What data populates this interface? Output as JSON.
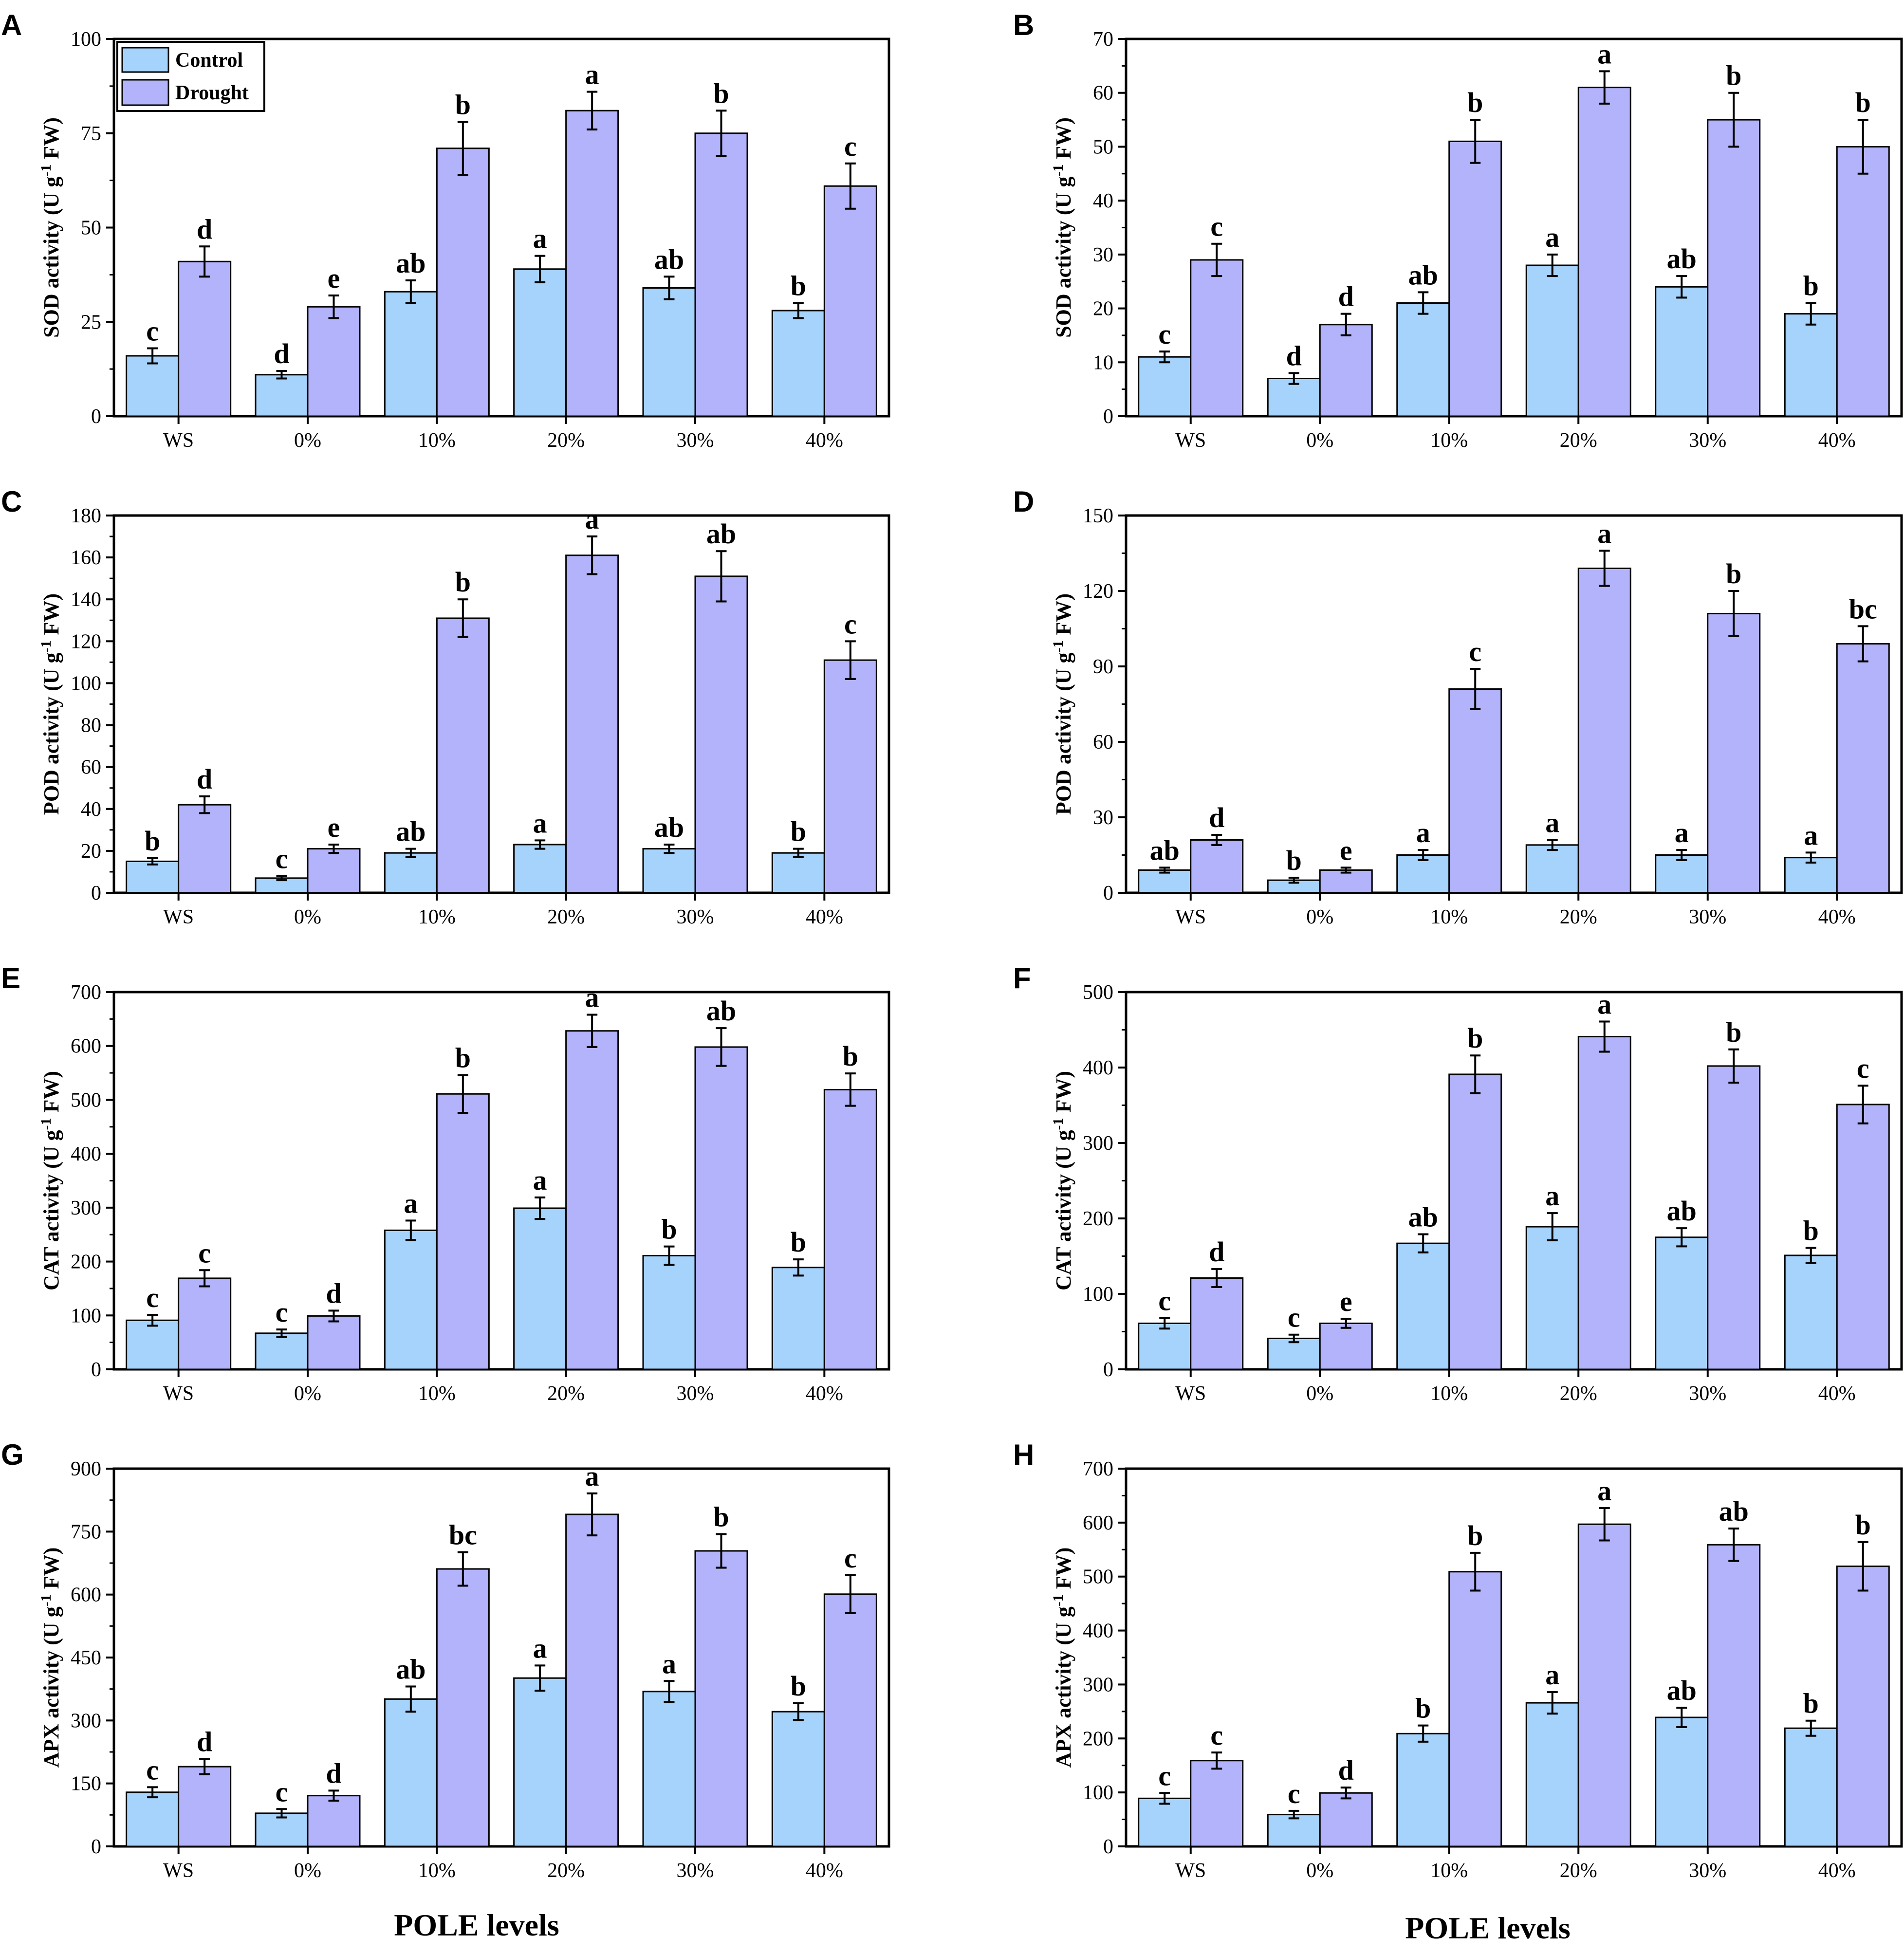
{
  "colors": {
    "control": "#a6d3fb",
    "drought": "#b3b3fb",
    "axis": "#000000",
    "background": "#ffffff"
  },
  "legend": {
    "control": "Control",
    "drought": "Drought",
    "placement": "top-left (panel A)"
  },
  "x_title": "POLE levels",
  "chart_data": [
    {
      "panel": "A",
      "type": "bar",
      "categories": [
        "WS",
        "0%",
        "10%",
        "20%",
        "30%",
        "40%"
      ],
      "ylabel": "SOD activity (U g-1 FW)",
      "ylim": [
        0,
        100
      ],
      "yticks": [
        0,
        25,
        50,
        75,
        100
      ],
      "series": [
        {
          "name": "Control",
          "values": [
            16,
            11,
            33,
            39,
            34,
            28
          ],
          "errors": [
            2,
            1,
            3,
            3.5,
            3,
            2
          ],
          "letters": [
            "c",
            "d",
            "ab",
            "a",
            "ab",
            "b"
          ]
        },
        {
          "name": "Drought",
          "values": [
            41,
            29,
            71,
            81,
            75,
            61
          ],
          "errors": [
            4,
            3,
            7,
            5,
            6,
            6
          ],
          "letters": [
            "d",
            "e",
            "b",
            "a",
            "b",
            "c"
          ]
        }
      ]
    },
    {
      "panel": "B",
      "type": "bar",
      "categories": [
        "WS",
        "0%",
        "10%",
        "20%",
        "30%",
        "40%"
      ],
      "ylabel": "SOD activity (U g-1 FW)",
      "ylim": [
        0,
        70
      ],
      "yticks": [
        0,
        10,
        20,
        30,
        40,
        50,
        60,
        70
      ],
      "series": [
        {
          "name": "Control",
          "values": [
            11,
            7,
            21,
            28,
            24,
            19
          ],
          "errors": [
            1,
            1,
            2,
            2,
            2,
            2
          ],
          "letters": [
            "c",
            "d",
            "ab",
            "a",
            "ab",
            "b"
          ]
        },
        {
          "name": "Drought",
          "values": [
            29,
            17,
            51,
            61,
            55,
            50
          ],
          "errors": [
            3,
            2,
            4,
            3,
            5,
            5
          ],
          "letters": [
            "c",
            "d",
            "b",
            "a",
            "b",
            "b"
          ]
        }
      ]
    },
    {
      "panel": "C",
      "type": "bar",
      "categories": [
        "WS",
        "0%",
        "10%",
        "20%",
        "30%",
        "40%"
      ],
      "ylabel": "POD activity (U g-1 FW)",
      "ylim": [
        0,
        180
      ],
      "yticks": [
        0,
        20,
        40,
        60,
        80,
        100,
        120,
        140,
        160,
        180
      ],
      "series": [
        {
          "name": "Control",
          "values": [
            15,
            7,
            19,
            23,
            21,
            19
          ],
          "errors": [
            1.5,
            1,
            2,
            2,
            2,
            2
          ],
          "letters": [
            "b",
            "c",
            "ab",
            "a",
            "ab",
            "b"
          ]
        },
        {
          "name": "Drought",
          "values": [
            42,
            21,
            131,
            161,
            151,
            111
          ],
          "errors": [
            4,
            2,
            9,
            9,
            12,
            9
          ],
          "letters": [
            "d",
            "e",
            "b",
            "a",
            "ab",
            "c"
          ]
        }
      ]
    },
    {
      "panel": "D",
      "type": "bar",
      "categories": [
        "WS",
        "0%",
        "10%",
        "20%",
        "30%",
        "40%"
      ],
      "ylabel": "POD activity (U g-1 FW)",
      "ylim": [
        0,
        150
      ],
      "yticks": [
        0,
        30,
        60,
        90,
        120,
        150
      ],
      "series": [
        {
          "name": "Control",
          "values": [
            9,
            5,
            15,
            19,
            15,
            14
          ],
          "errors": [
            1,
            1,
            2,
            2,
            2,
            2
          ],
          "letters": [
            "ab",
            "b",
            "a",
            "a",
            "a",
            "a"
          ]
        },
        {
          "name": "Drought",
          "values": [
            21,
            9,
            81,
            129,
            111,
            99
          ],
          "errors": [
            2,
            1,
            8,
            7,
            9,
            7
          ],
          "letters": [
            "d",
            "e",
            "c",
            "a",
            "b",
            "bc"
          ]
        }
      ]
    },
    {
      "panel": "E",
      "type": "bar",
      "categories": [
        "WS",
        "0%",
        "10%",
        "20%",
        "30%",
        "40%"
      ],
      "ylabel": "CAT activity (U g-1 FW)",
      "ylim": [
        0,
        700
      ],
      "yticks": [
        0,
        100,
        200,
        300,
        400,
        500,
        600,
        700
      ],
      "series": [
        {
          "name": "Control",
          "values": [
            91,
            67,
            258,
            299,
            211,
            189
          ],
          "errors": [
            10,
            7,
            18,
            20,
            17,
            15
          ],
          "letters": [
            "c",
            "c",
            "a",
            "a",
            "b",
            "b"
          ]
        },
        {
          "name": "Drought",
          "values": [
            169,
            99,
            511,
            628,
            598,
            519
          ],
          "errors": [
            15,
            10,
            35,
            30,
            35,
            30
          ],
          "letters": [
            "c",
            "d",
            "b",
            "a",
            "ab",
            "b"
          ]
        }
      ]
    },
    {
      "panel": "F",
      "type": "bar",
      "categories": [
        "WS",
        "0%",
        "10%",
        "20%",
        "30%",
        "40%"
      ],
      "ylabel": "CAT activity (U g-1 FW)",
      "ylim": [
        0,
        500
      ],
      "yticks": [
        0,
        100,
        200,
        300,
        400,
        500
      ],
      "series": [
        {
          "name": "Control",
          "values": [
            61,
            41,
            167,
            189,
            175,
            151
          ],
          "errors": [
            7,
            5,
            12,
            18,
            12,
            10
          ],
          "letters": [
            "c",
            "c",
            "ab",
            "a",
            "ab",
            "b"
          ]
        },
        {
          "name": "Drought",
          "values": [
            121,
            61,
            391,
            441,
            402,
            351
          ],
          "errors": [
            12,
            6,
            25,
            20,
            22,
            25
          ],
          "letters": [
            "d",
            "e",
            "b",
            "a",
            "b",
            "c"
          ]
        }
      ]
    },
    {
      "panel": "G",
      "type": "bar",
      "categories": [
        "WS",
        "0%",
        "10%",
        "20%",
        "30%",
        "40%"
      ],
      "ylabel": "APX activity (U g-1 FW)",
      "ylim": [
        0,
        900
      ],
      "yticks": [
        0,
        150,
        300,
        450,
        600,
        750,
        900
      ],
      "series": [
        {
          "name": "Control",
          "values": [
            129,
            79,
            351,
            401,
            369,
            321
          ],
          "errors": [
            12,
            10,
            30,
            30,
            25,
            20
          ],
          "letters": [
            "c",
            "c",
            "ab",
            "a",
            "a",
            "b"
          ]
        },
        {
          "name": "Drought",
          "values": [
            190,
            121,
            661,
            791,
            704,
            601
          ],
          "errors": [
            18,
            12,
            40,
            50,
            40,
            45
          ],
          "letters": [
            "d",
            "d",
            "bc",
            "a",
            "b",
            "c"
          ]
        }
      ]
    },
    {
      "panel": "H",
      "type": "bar",
      "categories": [
        "WS",
        "0%",
        "10%",
        "20%",
        "30%",
        "40%"
      ],
      "ylabel": "APX activity (U g-1 FW)",
      "ylim": [
        0,
        700
      ],
      "yticks": [
        0,
        100,
        200,
        300,
        400,
        500,
        600,
        700
      ],
      "series": [
        {
          "name": "Control",
          "values": [
            89,
            59,
            209,
            266,
            239,
            219
          ],
          "errors": [
            10,
            7,
            15,
            20,
            18,
            14
          ],
          "letters": [
            "c",
            "c",
            "b",
            "a",
            "ab",
            "b"
          ]
        },
        {
          "name": "Drought",
          "values": [
            159,
            99,
            509,
            597,
            559,
            519
          ],
          "errors": [
            15,
            10,
            35,
            30,
            30,
            45
          ],
          "letters": [
            "c",
            "d",
            "b",
            "a",
            "ab",
            "b"
          ]
        }
      ]
    }
  ]
}
